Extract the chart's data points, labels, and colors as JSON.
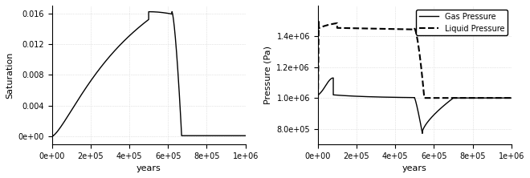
{
  "sat_xlim": [
    0,
    1000000.0
  ],
  "sat_ylim": [
    -0.001,
    0.017
  ],
  "sat_yticks": [
    0.0,
    0.004,
    0.008,
    0.012,
    0.016
  ],
  "sat_xticks": [
    0,
    200000,
    400000,
    600000,
    800000,
    1000000
  ],
  "sat_xlabel": "years",
  "sat_ylabel": "Saturation",
  "pres_xlim": [
    0,
    1000000.0
  ],
  "pres_ylim": [
    700000,
    1600000
  ],
  "pres_yticks": [
    800000,
    1000000,
    1200000,
    1400000
  ],
  "pres_xticks": [
    0,
    200000,
    400000,
    600000,
    800000,
    1000000
  ],
  "pres_xlabel": "years",
  "pres_ylabel": "Pressure (Pa)",
  "line_color": "black",
  "background_color": "white",
  "grid_color": "#cccccc",
  "grid_style": "dotted",
  "legend_gas": "Gas Pressure",
  "legend_liquid": "Liquid Pressure",
  "font_size": 8
}
